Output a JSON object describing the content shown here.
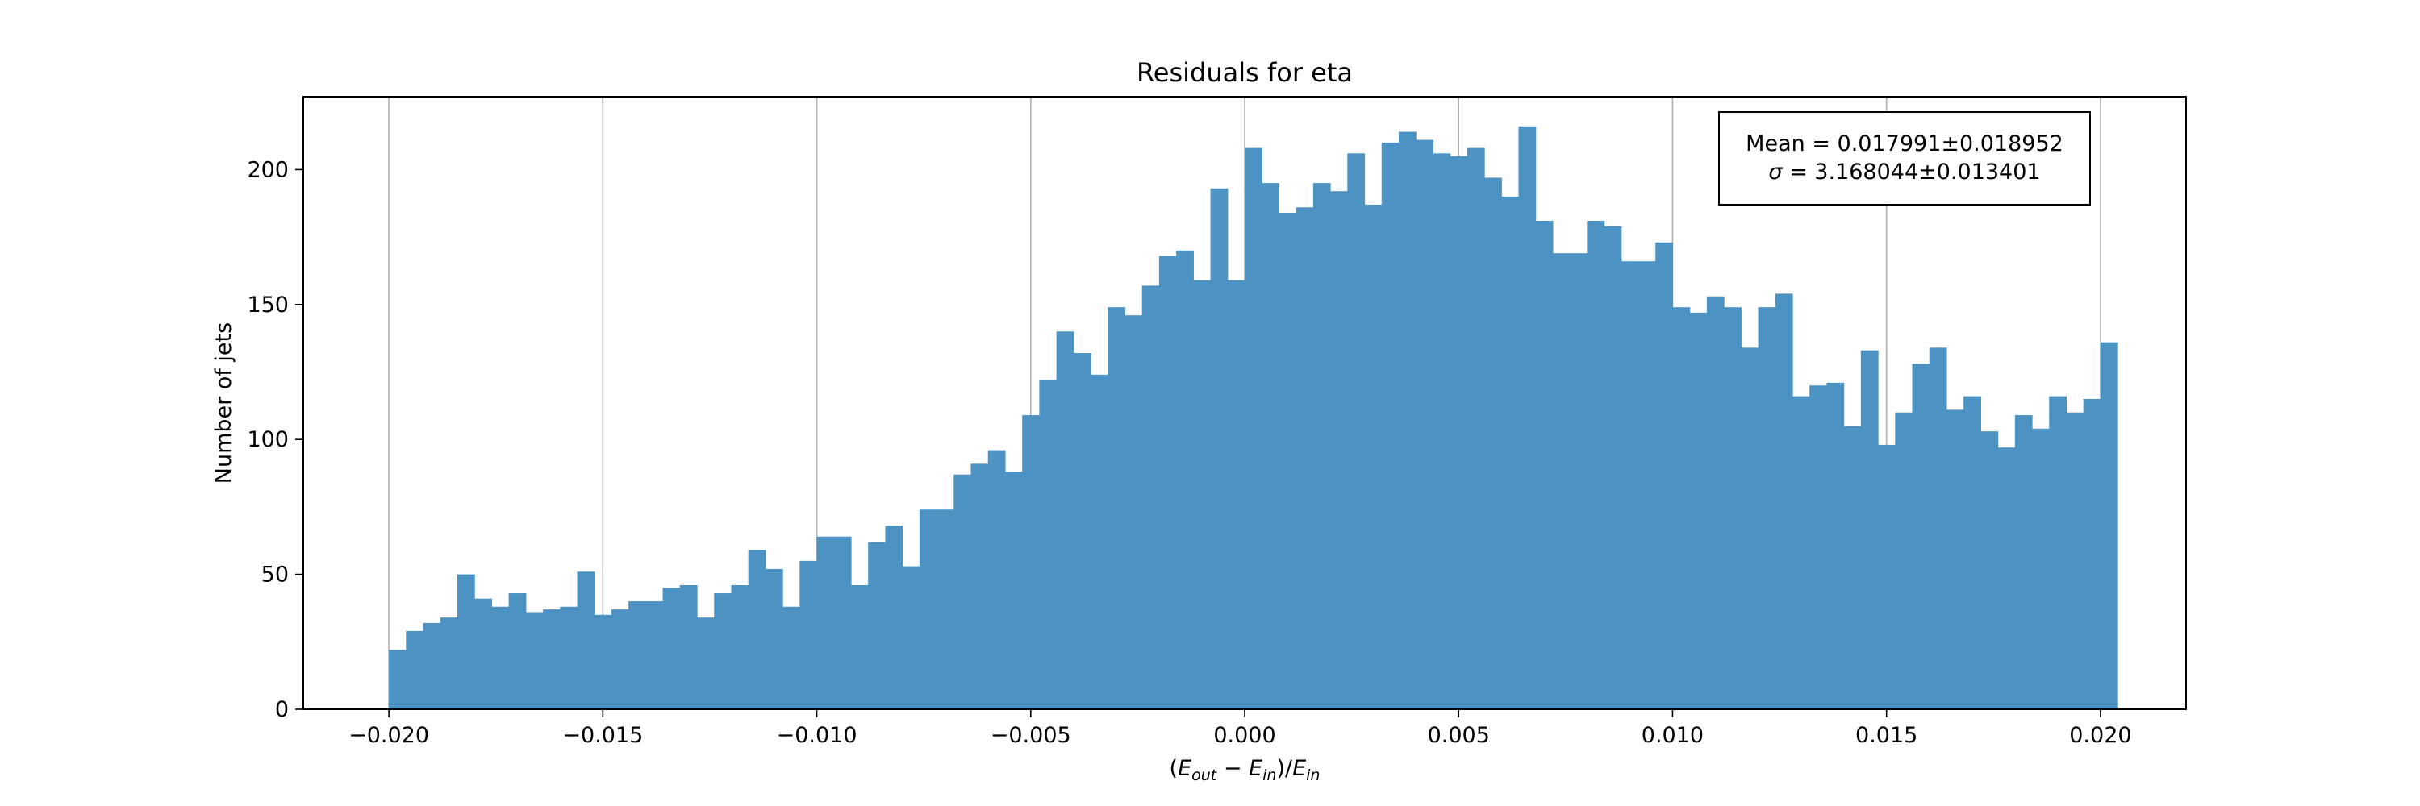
{
  "chart_data": {
    "type": "bar",
    "title": "Residuals for eta",
    "xlabel": {
      "E1": "E",
      "s1": "out",
      "minus": " − ",
      "E2": "E",
      "s2": "in",
      "slash": ")/",
      "E3": "E",
      "s3": "in",
      "open": "("
    },
    "ylabel": "Number of jets",
    "xlim": [
      -0.022,
      0.022
    ],
    "ylim": [
      0,
      227
    ],
    "bin_start": -0.02,
    "bin_width": 0.0004,
    "values": [
      22,
      29,
      32,
      34,
      50,
      41,
      38,
      43,
      36,
      37,
      38,
      51,
      35,
      37,
      40,
      40,
      45,
      46,
      34,
      43,
      46,
      59,
      52,
      38,
      55,
      64,
      64,
      46,
      62,
      68,
      53,
      74,
      74,
      87,
      91,
      96,
      88,
      109,
      122,
      140,
      132,
      124,
      149,
      146,
      157,
      168,
      170,
      159,
      193,
      159,
      208,
      195,
      184,
      186,
      195,
      192,
      206,
      187,
      210,
      214,
      211,
      206,
      205,
      208,
      197,
      190,
      216,
      181,
      169,
      169,
      181,
      179,
      166,
      166,
      173,
      149,
      147,
      153,
      149,
      134,
      149,
      154,
      116,
      120,
      121,
      105,
      133,
      98,
      110,
      128,
      134,
      111,
      116,
      103,
      97,
      109,
      104,
      116,
      110,
      115,
      136
    ],
    "x_ticks": [
      "−0.020",
      "−0.015",
      "−0.010",
      "−0.005",
      "0.000",
      "0.005",
      "0.010",
      "0.015",
      "0.020"
    ],
    "x_tick_values": [
      -0.02,
      -0.015,
      -0.01,
      -0.005,
      0.0,
      0.005,
      0.01,
      0.015,
      0.02
    ],
    "y_ticks": [
      "0",
      "50",
      "100",
      "150",
      "200"
    ],
    "y_tick_values": [
      0,
      50,
      100,
      150,
      200
    ],
    "grid": "vertical",
    "bar_color": "#4c92c3",
    "stats_box": {
      "line1": "Mean = 0.017991±0.018952",
      "sigma": "σ",
      "line2_rest": " = 3.168044±0.013401",
      "placement": "top-right"
    }
  }
}
